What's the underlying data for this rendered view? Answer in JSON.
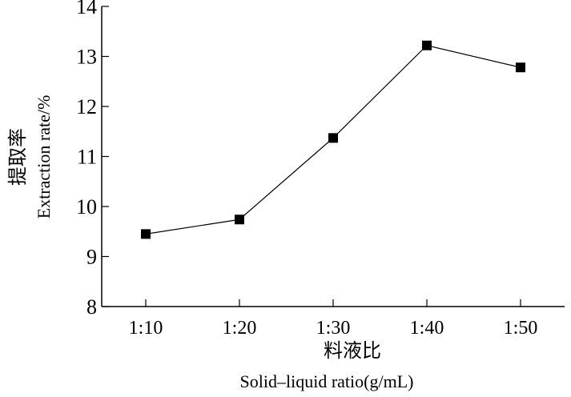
{
  "chart_data": {
    "type": "line",
    "categories": [
      "1:10",
      "1:20",
      "1:30",
      "1:40",
      "1:50"
    ],
    "series": [
      {
        "name": "Extraction rate",
        "values": [
          9.45,
          9.74,
          11.37,
          13.22,
          12.78
        ],
        "marker": "square",
        "color": "#000000"
      }
    ],
    "xlabel_cn": "料液比",
    "xlabel": "Solid–liquid ratio(g/mL)",
    "ylabel_cn": "提取率",
    "ylabel": "Extraction rate/%",
    "ylim": [
      8,
      14
    ],
    "yticks": [
      8,
      9,
      10,
      11,
      12,
      13,
      14
    ],
    "grid": false
  }
}
